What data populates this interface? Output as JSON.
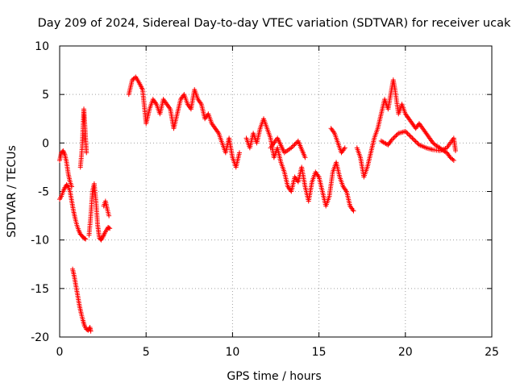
{
  "chart_data": {
    "type": "scatter",
    "title": "Day 209 of 2024, Sidereal Day-to-day VTEC variation (SDTVAR) for receiver ucak",
    "xlabel": "GPS time / hours",
    "ylabel": "SDTVAR / TECUs",
    "xlim": [
      0,
      25
    ],
    "ylim": [
      -20,
      10
    ],
    "xticks": [
      0,
      5,
      10,
      15,
      20,
      25
    ],
    "yticks": [
      -20,
      -15,
      -10,
      -5,
      0,
      5,
      10
    ],
    "grid": true,
    "marker": "+",
    "series": [
      {
        "name": "SDTVAR",
        "color": "#ff0000",
        "segments": [
          [
            [
              0.0,
              -1.8
            ],
            [
              0.1,
              -1.0
            ],
            [
              0.2,
              -0.8
            ],
            [
              0.3,
              -1.2
            ],
            [
              0.4,
              -2.0
            ],
            [
              0.5,
              -3.2
            ],
            [
              0.6,
              -4.0
            ],
            [
              0.7,
              -4.5
            ]
          ],
          [
            [
              0.0,
              -5.8
            ],
            [
              0.1,
              -5.5
            ],
            [
              0.2,
              -5.0
            ],
            [
              0.3,
              -4.6
            ],
            [
              0.4,
              -4.3
            ],
            [
              0.5,
              -4.5
            ],
            [
              0.6,
              -5.0
            ],
            [
              0.7,
              -6.0
            ],
            [
              0.8,
              -7.0
            ],
            [
              0.9,
              -7.8
            ],
            [
              1.0,
              -8.5
            ],
            [
              1.1,
              -9.0
            ],
            [
              1.2,
              -9.4
            ],
            [
              1.3,
              -9.6
            ],
            [
              1.4,
              -9.8
            ],
            [
              1.5,
              -9.9
            ]
          ],
          [
            [
              0.75,
              -13.0
            ],
            [
              0.85,
              -13.8
            ],
            [
              0.95,
              -14.8
            ],
            [
              1.05,
              -15.8
            ],
            [
              1.15,
              -16.8
            ],
            [
              1.25,
              -17.6
            ],
            [
              1.35,
              -18.3
            ],
            [
              1.45,
              -18.9
            ],
            [
              1.55,
              -19.2
            ],
            [
              1.65,
              -19.3
            ],
            [
              1.75,
              -19.0
            ],
            [
              1.8,
              -19.4
            ]
          ],
          [
            [
              1.2,
              -2.5
            ],
            [
              1.3,
              -0.5
            ],
            [
              1.35,
              1.5
            ],
            [
              1.4,
              3.5
            ],
            [
              1.45,
              2.0
            ],
            [
              1.5,
              0.5
            ],
            [
              1.55,
              -1.0
            ]
          ],
          [
            [
              1.7,
              -9.5
            ],
            [
              1.8,
              -7.5
            ],
            [
              1.9,
              -5.0
            ],
            [
              2.0,
              -4.2
            ],
            [
              2.1,
              -6.0
            ],
            [
              2.2,
              -8.5
            ],
            [
              2.3,
              -9.8
            ],
            [
              2.4,
              -10.0
            ],
            [
              2.5,
              -9.7
            ],
            [
              2.6,
              -9.3
            ],
            [
              2.7,
              -9.0
            ],
            [
              2.8,
              -8.7
            ],
            [
              2.9,
              -8.8
            ]
          ],
          [
            [
              2.55,
              -6.5
            ],
            [
              2.65,
              -6.0
            ],
            [
              2.75,
              -6.8
            ],
            [
              2.85,
              -7.5
            ]
          ],
          [
            [
              4.0,
              5.0
            ],
            [
              4.2,
              6.5
            ],
            [
              4.4,
              6.8
            ],
            [
              4.6,
              6.2
            ],
            [
              4.8,
              5.5
            ],
            [
              5.0,
              2.0
            ],
            [
              5.2,
              3.5
            ],
            [
              5.4,
              4.5
            ],
            [
              5.6,
              4.0
            ],
            [
              5.8,
              3.0
            ],
            [
              6.0,
              4.5
            ],
            [
              6.2,
              4.0
            ],
            [
              6.4,
              3.5
            ],
            [
              6.6,
              1.5
            ],
            [
              6.8,
              3.0
            ],
            [
              7.0,
              4.5
            ],
            [
              7.2,
              5.0
            ],
            [
              7.4,
              4.0
            ],
            [
              7.6,
              3.5
            ],
            [
              7.8,
              5.5
            ],
            [
              8.0,
              4.5
            ],
            [
              8.2,
              4.0
            ],
            [
              8.4,
              2.5
            ],
            [
              8.6,
              3.0
            ],
            [
              8.8,
              2.0
            ],
            [
              9.0,
              1.5
            ],
            [
              9.2,
              1.0
            ],
            [
              9.4,
              0.0
            ],
            [
              9.6,
              -1.0
            ],
            [
              9.8,
              0.5
            ],
            [
              10.0,
              -1.5
            ],
            [
              10.2,
              -2.5
            ],
            [
              10.4,
              -1.0
            ]
          ],
          [
            [
              10.8,
              0.5
            ],
            [
              11.0,
              -0.5
            ],
            [
              11.2,
              1.0
            ],
            [
              11.4,
              0.0
            ],
            [
              11.6,
              1.5
            ],
            [
              11.8,
              2.5
            ],
            [
              12.0,
              1.5
            ],
            [
              12.2,
              0.5
            ],
            [
              12.4,
              -1.5
            ],
            [
              12.6,
              -0.5
            ],
            [
              12.8,
              -2.0
            ],
            [
              13.0,
              -3.0
            ],
            [
              13.2,
              -4.5
            ],
            [
              13.4,
              -5.0
            ],
            [
              13.6,
              -3.5
            ],
            [
              13.8,
              -4.0
            ],
            [
              14.0,
              -2.5
            ],
            [
              14.2,
              -4.5
            ],
            [
              14.4,
              -6.0
            ],
            [
              14.6,
              -4.0
            ],
            [
              14.8,
              -3.0
            ],
            [
              15.0,
              -3.5
            ],
            [
              15.2,
              -5.0
            ],
            [
              15.4,
              -6.5
            ],
            [
              15.6,
              -5.5
            ],
            [
              15.8,
              -3.0
            ],
            [
              16.0,
              -2.0
            ],
            [
              16.2,
              -3.5
            ],
            [
              16.4,
              -4.5
            ],
            [
              16.6,
              -5.0
            ],
            [
              16.8,
              -6.5
            ],
            [
              17.0,
              -7.0
            ]
          ],
          [
            [
              12.2,
              -0.5
            ],
            [
              12.6,
              0.5
            ],
            [
              13.0,
              -1.0
            ],
            [
              13.4,
              -0.5
            ],
            [
              13.8,
              0.2
            ],
            [
              14.2,
              -1.5
            ]
          ],
          [
            [
              15.7,
              1.5
            ],
            [
              15.9,
              1.0
            ],
            [
              16.1,
              0.0
            ],
            [
              16.3,
              -1.0
            ],
            [
              16.5,
              -0.5
            ]
          ],
          [
            [
              17.2,
              -0.5
            ],
            [
              17.4,
              -1.5
            ],
            [
              17.6,
              -3.5
            ],
            [
              17.8,
              -2.5
            ],
            [
              18.0,
              -1.0
            ],
            [
              18.2,
              0.5
            ],
            [
              18.4,
              1.5
            ],
            [
              18.6,
              3.0
            ],
            [
              18.8,
              4.5
            ],
            [
              19.0,
              3.5
            ],
            [
              19.2,
              5.5
            ],
            [
              19.3,
              6.5
            ],
            [
              19.4,
              5.5
            ],
            [
              19.6,
              3.0
            ],
            [
              19.8,
              4.0
            ],
            [
              20.0,
              3.0
            ],
            [
              20.2,
              2.5
            ],
            [
              20.4,
              2.0
            ],
            [
              20.6,
              1.5
            ],
            [
              20.8,
              2.0
            ],
            [
              21.0,
              1.5
            ],
            [
              21.2,
              1.0
            ],
            [
              21.4,
              0.5
            ],
            [
              21.6,
              0.0
            ],
            [
              21.8,
              -0.3
            ],
            [
              22.0,
              -0.5
            ],
            [
              22.2,
              -0.8
            ],
            [
              22.4,
              -1.0
            ],
            [
              22.6,
              -1.5
            ],
            [
              22.8,
              -1.8
            ]
          ],
          [
            [
              18.6,
              0.2
            ],
            [
              18.8,
              0.0
            ],
            [
              19.0,
              -0.2
            ],
            [
              19.2,
              0.3
            ],
            [
              19.6,
              1.0
            ],
            [
              20.0,
              1.2
            ],
            [
              20.4,
              0.5
            ],
            [
              20.8,
              -0.2
            ],
            [
              21.2,
              -0.5
            ],
            [
              21.6,
              -0.7
            ],
            [
              22.0,
              -0.8
            ],
            [
              22.4,
              -0.5
            ],
            [
              22.8,
              0.5
            ],
            [
              22.9,
              -0.8
            ]
          ]
        ]
      }
    ]
  }
}
